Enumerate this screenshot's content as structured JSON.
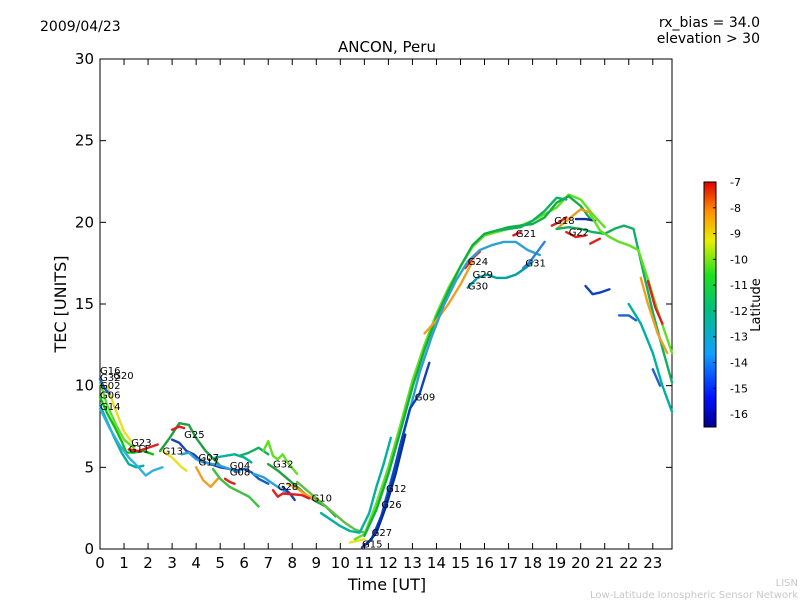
{
  "header": {
    "date": "2009/04/23",
    "bias_line1": "rx_bias = 34.0",
    "bias_line2": "elevation > 30"
  },
  "watermark": {
    "line1": "LISN",
    "line2": "Low-Latitude Ionospheric Sensor Network"
  },
  "chart_data": {
    "type": "line",
    "title": "ANCON, Peru",
    "xlabel": "Time [UT]",
    "ylabel": "TEC [UNITS]",
    "xlim": [
      0,
      23.8
    ],
    "ylim": [
      0,
      30
    ],
    "xticks": [
      0,
      1,
      2,
      3,
      4,
      5,
      6,
      7,
      8,
      9,
      10,
      11,
      12,
      13,
      14,
      15,
      16,
      17,
      18,
      19,
      20,
      21,
      22,
      23
    ],
    "yticks": [
      0,
      5,
      10,
      15,
      20,
      25,
      30
    ],
    "grid": false,
    "colorbar": {
      "label": "Latitude",
      "min": -16.5,
      "max": -7,
      "ticks": [
        -7,
        -8,
        -9,
        -10,
        -11,
        -12,
        -13,
        -14,
        -15,
        -16
      ]
    },
    "satellite_labels": [
      {
        "text": "G16",
        "x": 0.0,
        "y": 10.7
      },
      {
        "text": "G32",
        "x": 0.0,
        "y": 10.3
      },
      {
        "text": "G20",
        "x": 0.55,
        "y": 10.4
      },
      {
        "text": "G02",
        "x": 0.0,
        "y": 9.8
      },
      {
        "text": "G06",
        "x": 0.0,
        "y": 9.2
      },
      {
        "text": "G14",
        "x": 0.0,
        "y": 8.5
      },
      {
        "text": "G23",
        "x": 1.3,
        "y": 6.3
      },
      {
        "text": "G11",
        "x": 1.2,
        "y": 5.9
      },
      {
        "text": "G13",
        "x": 2.6,
        "y": 5.8
      },
      {
        "text": "G25",
        "x": 3.5,
        "y": 6.8
      },
      {
        "text": "G07",
        "x": 4.1,
        "y": 5.4
      },
      {
        "text": "G17",
        "x": 4.1,
        "y": 5.1
      },
      {
        "text": "G04",
        "x": 5.4,
        "y": 4.9
      },
      {
        "text": "G08",
        "x": 5.4,
        "y": 4.5
      },
      {
        "text": "G32",
        "x": 7.2,
        "y": 5.0
      },
      {
        "text": "G28",
        "x": 7.4,
        "y": 3.6
      },
      {
        "text": "G10",
        "x": 8.8,
        "y": 2.9
      },
      {
        "text": "G12",
        "x": 11.9,
        "y": 3.5
      },
      {
        "text": "G26",
        "x": 11.7,
        "y": 2.5
      },
      {
        "text": "G27",
        "x": 11.3,
        "y": 0.8
      },
      {
        "text": "G15",
        "x": 10.9,
        "y": 0.1
      },
      {
        "text": "G09",
        "x": 13.1,
        "y": 9.1
      },
      {
        "text": "G24",
        "x": 15.3,
        "y": 17.4
      },
      {
        "text": "G29",
        "x": 15.5,
        "y": 16.6
      },
      {
        "text": "G30",
        "x": 15.3,
        "y": 15.9
      },
      {
        "text": "G21",
        "x": 17.3,
        "y": 19.1
      },
      {
        "text": "G31",
        "x": 17.7,
        "y": 17.3
      },
      {
        "text": "G18",
        "x": 18.9,
        "y": 19.9
      },
      {
        "text": "G22",
        "x": 19.5,
        "y": 19.2
      }
    ],
    "series": [
      {
        "color": "#10c010",
        "x": [
          0,
          0.3,
          0.6,
          0.9,
          1.1,
          1.4,
          1.8,
          2.2
        ],
        "y": [
          9.3,
          8.3,
          7.5,
          6.6,
          5.9,
          5.9,
          6.0,
          5.8
        ]
      },
      {
        "color": "#00b0a0",
        "x": [
          0,
          0.3,
          0.6,
          0.9,
          1.2,
          1.5,
          1.8
        ],
        "y": [
          8.8,
          7.8,
          6.8,
          5.9,
          5.2,
          5.0,
          5.1
        ]
      },
      {
        "color": "#30b0e0",
        "x": [
          0,
          0.4,
          0.8,
          1.2,
          1.6,
          1.9,
          2.2,
          2.6
        ],
        "y": [
          8.6,
          7.4,
          6.4,
          5.6,
          5.0,
          4.5,
          4.8,
          5.0
        ]
      },
      {
        "color": "#60e020",
        "x": [
          0,
          0.3,
          0.7,
          1.0,
          1.4
        ],
        "y": [
          10.2,
          8.8,
          7.5,
          6.7,
          6.2
        ]
      },
      {
        "color": "#e8e020",
        "x": [
          0.3,
          0.6,
          1.0,
          1.3
        ],
        "y": [
          10.0,
          8.7,
          7.2,
          6.6
        ]
      },
      {
        "color": "#2060d0",
        "x": [
          0,
          0.2,
          0.4
        ],
        "y": [
          10.4,
          9.8,
          9.5
        ]
      },
      {
        "color": "#e02020",
        "x": [
          1.2,
          1.6,
          2.0,
          2.4
        ],
        "y": [
          6.1,
          6.0,
          6.2,
          6.4
        ]
      },
      {
        "color": "#20a040",
        "x": [
          2.5,
          2.9,
          3.3,
          3.7,
          4.0,
          4.4,
          4.8,
          5.0
        ],
        "y": [
          6.0,
          6.8,
          7.7,
          7.6,
          6.8,
          6.0,
          5.4,
          5.1
        ]
      },
      {
        "color": "#e8e020",
        "x": [
          2.6,
          3.0,
          3.4,
          3.6
        ],
        "y": [
          6.0,
          5.6,
          5.0,
          4.8
        ]
      },
      {
        "color": "#e02020",
        "x": [
          3.0,
          3.3,
          3.5
        ],
        "y": [
          7.3,
          7.5,
          7.4
        ]
      },
      {
        "color": "#2040c0",
        "x": [
          3.0,
          3.3,
          3.6,
          3.9,
          4.2,
          4.6,
          5.0,
          5.4,
          5.6
        ],
        "y": [
          6.7,
          6.5,
          6.0,
          5.8,
          5.4,
          5.2,
          5.0,
          4.9,
          4.8
        ]
      },
      {
        "color": "#30a0d0",
        "x": [
          3.4,
          3.7,
          4.0,
          4.3,
          4.7,
          5.0,
          5.4,
          5.8
        ],
        "y": [
          5.8,
          5.9,
          5.5,
          5.3,
          5.2,
          5.1,
          4.9,
          4.7
        ]
      },
      {
        "color": "#f0a020",
        "x": [
          4.0,
          4.3,
          4.6,
          4.9
        ],
        "y": [
          5.0,
          4.2,
          3.8,
          4.3
        ]
      },
      {
        "color": "#e02020",
        "x": [
          5.2,
          5.4,
          5.6
        ],
        "y": [
          4.3,
          4.1,
          4.0
        ]
      },
      {
        "color": "#40c040",
        "x": [
          4.7,
          5.0,
          5.4,
          5.8,
          6.2,
          6.6
        ],
        "y": [
          4.9,
          4.3,
          3.8,
          3.5,
          3.2,
          2.6
        ]
      },
      {
        "color": "#00b0a0",
        "x": [
          4.8,
          5.2,
          5.6,
          6.0,
          6.3
        ],
        "y": [
          5.6,
          5.7,
          5.8,
          5.6,
          5.3
        ]
      },
      {
        "color": "#1060c0",
        "x": [
          5.6,
          6.0,
          6.3,
          6.6,
          7.0
        ],
        "y": [
          4.8,
          4.9,
          4.7,
          4.3,
          4.0
        ]
      },
      {
        "color": "#10b060",
        "x": [
          5.8,
          6.2,
          6.6,
          7.0
        ],
        "y": [
          5.7,
          5.9,
          6.2,
          5.8
        ]
      },
      {
        "color": "#60e020",
        "x": [
          6.8,
          7.0,
          7.2,
          7.4,
          7.6,
          7.8,
          8.2
        ],
        "y": [
          6.0,
          6.6,
          5.7,
          5.5,
          5.8,
          5.3,
          4.6
        ]
      },
      {
        "color": "#20a040",
        "x": [
          7.0,
          7.4,
          7.8,
          8.2,
          8.6,
          9.0,
          9.4,
          9.8
        ],
        "y": [
          5.2,
          4.8,
          4.3,
          3.8,
          3.3,
          2.9,
          2.6,
          2.0
        ]
      },
      {
        "color": "#30a0d0",
        "x": [
          6.4,
          6.8,
          7.2,
          7.6,
          8.0
        ],
        "y": [
          4.6,
          4.4,
          4.0,
          3.6,
          3.3
        ]
      },
      {
        "color": "#2040c0",
        "x": [
          7.6,
          7.9,
          8.1
        ],
        "y": [
          3.8,
          3.4,
          3.0
        ]
      },
      {
        "color": "#f0a020",
        "x": [
          7.8,
          8.2,
          8.6,
          9.0
        ],
        "y": [
          4.0,
          3.7,
          3.3,
          3.0
        ]
      },
      {
        "color": "#e02020",
        "x": [
          7.2,
          7.4,
          7.6,
          8.4,
          8.7
        ],
        "y": [
          3.6,
          3.2,
          3.4,
          3.3,
          3.1
        ]
      },
      {
        "color": "#60c040",
        "x": [
          8.2,
          8.6,
          9.0,
          9.4,
          9.8,
          10.2,
          10.6,
          11.0
        ],
        "y": [
          4.1,
          3.6,
          3.1,
          2.6,
          2.1,
          1.6,
          1.2,
          1.0
        ]
      },
      {
        "color": "#00b0a0",
        "x": [
          9.2,
          9.6,
          10.0,
          10.4,
          10.8,
          11.2,
          11.5,
          11.8,
          12.1
        ],
        "y": [
          2.2,
          1.8,
          1.4,
          1.1,
          1.0,
          2.2,
          3.8,
          5.2,
          6.8
        ]
      },
      {
        "color": "#e8e020",
        "x": [
          10.4,
          10.7,
          11.0
        ],
        "y": [
          0.4,
          0.5,
          0.6
        ]
      },
      {
        "color": "#60e020",
        "x": [
          10.6,
          11.0,
          11.5,
          12.0,
          12.5,
          13.0,
          13.5,
          14.0,
          14.5,
          15.0,
          15.5,
          16.0,
          16.5,
          17.0,
          17.5,
          18.0,
          18.5,
          19.0,
          19.5,
          20.0,
          20.5,
          21.0
        ],
        "y": [
          0.6,
          0.9,
          2.8,
          5.0,
          7.6,
          10.3,
          12.5,
          14.4,
          16.0,
          17.3,
          18.5,
          19.2,
          19.4,
          19.6,
          19.8,
          20.1,
          20.5,
          20.9,
          21.7,
          21.4,
          20.5,
          19.7
        ]
      },
      {
        "color": "#10b040",
        "x": [
          11.0,
          11.5,
          12.0,
          12.5,
          13.0,
          13.5,
          14.0,
          14.5,
          15.0,
          15.5,
          16.0,
          16.5,
          17.0,
          17.5,
          18.0,
          18.5,
          19.0,
          19.5,
          20.0,
          20.4
        ],
        "y": [
          0.8,
          2.4,
          4.6,
          7.2,
          9.9,
          12.2,
          14.2,
          15.8,
          17.3,
          18.6,
          19.3,
          19.5,
          19.7,
          19.8,
          19.9,
          20.3,
          21.2,
          21.6,
          21.0,
          20.2
        ]
      },
      {
        "color": "#f0a020",
        "x": [
          13.5,
          14.0,
          14.5,
          15.0,
          15.5
        ],
        "y": [
          13.2,
          14.0,
          15.0,
          16.2,
          17.6
        ]
      },
      {
        "color": "#e02020",
        "x": [
          15.2,
          15.5,
          15.8
        ],
        "y": [
          17.2,
          17.8,
          18.2
        ]
      },
      {
        "color": "#30a0d0",
        "x": [
          11.8,
          12.3,
          12.8,
          13.3,
          13.8,
          14.3,
          14.8,
          15.3,
          15.8,
          16.3,
          16.8,
          17.3,
          17.8,
          18.3
        ],
        "y": [
          2.6,
          5.2,
          8.0,
          10.8,
          13.0,
          14.9,
          16.4,
          17.6,
          18.3,
          18.6,
          18.8,
          18.8,
          18.3,
          18.0
        ]
      },
      {
        "color": "#1040c0",
        "x": [
          10.9,
          11.3,
          11.7,
          12.1,
          12.5,
          12.9,
          13.3,
          13.7
        ],
        "y": [
          0.1,
          0.6,
          2.0,
          4.0,
          6.4,
          8.6,
          9.5,
          11.4
        ]
      },
      {
        "color": "#0030a0",
        "x": [
          11.1,
          11.5,
          11.9,
          12.3,
          12.7
        ],
        "y": [
          0.3,
          1.0,
          2.6,
          4.6,
          7.0
        ]
      },
      {
        "color": "#00a0a0",
        "x": [
          15.3,
          15.7,
          16.1,
          16.5,
          16.9,
          17.3,
          17.7,
          18.0
        ],
        "y": [
          16.0,
          16.6,
          16.8,
          16.6,
          16.6,
          16.8,
          17.2,
          17.6
        ]
      },
      {
        "color": "#3080e0",
        "x": [
          17.6,
          17.9,
          18.2,
          18.5
        ],
        "y": [
          17.2,
          17.6,
          18.2,
          18.8
        ]
      },
      {
        "color": "#10b060",
        "x": [
          16.5,
          17.0,
          17.5,
          18.0,
          18.5,
          19.0,
          19.4
        ],
        "y": [
          19.5,
          19.6,
          19.7,
          20.1,
          20.7,
          21.5,
          21.4
        ]
      },
      {
        "color": "#e02020",
        "x": [
          18.8,
          19.1,
          19.4
        ],
        "y": [
          19.8,
          20.0,
          20.3
        ]
      },
      {
        "color": "#e02020",
        "x": [
          17.2,
          17.5
        ],
        "y": [
          19.2,
          19.4
        ]
      },
      {
        "color": "#e0a020",
        "x": [
          19.0,
          19.5,
          20.0,
          20.4
        ],
        "y": [
          19.6,
          20.2,
          20.8,
          20.6
        ]
      },
      {
        "color": "#e02020",
        "x": [
          19.4,
          19.8,
          20.2
        ],
        "y": [
          19.4,
          19.1,
          19.2
        ]
      },
      {
        "color": "#e02020",
        "x": [
          20.4,
          20.8
        ],
        "y": [
          18.7,
          19.0
        ]
      },
      {
        "color": "#1030a0",
        "x": [
          19.8,
          20.2,
          20.6
        ],
        "y": [
          20.2,
          20.2,
          20.1
        ]
      },
      {
        "color": "#10b060",
        "x": [
          19.0,
          19.5,
          20.0,
          20.5,
          21.0,
          21.4,
          21.8,
          22.2,
          22.6,
          23.0,
          23.4,
          23.8
        ],
        "y": [
          19.6,
          19.7,
          19.6,
          19.4,
          19.3,
          19.6,
          19.8,
          19.6,
          17.0,
          14.5,
          12.3,
          10.2
        ]
      },
      {
        "color": "#60e020",
        "x": [
          20.4,
          20.8,
          21.2,
          21.6,
          22.0,
          22.4,
          22.8,
          23.2,
          23.8
        ],
        "y": [
          20.5,
          19.5,
          19.1,
          18.8,
          18.6,
          18.3,
          16.5,
          14.6,
          12.0
        ]
      },
      {
        "color": "#1040c0",
        "x": [
          20.2,
          20.5,
          20.8,
          21.2
        ],
        "y": [
          16.1,
          15.6,
          15.7,
          15.9
        ]
      },
      {
        "color": "#2060d0",
        "x": [
          21.6,
          22.0,
          22.3
        ],
        "y": [
          14.3,
          14.3,
          14.0
        ]
      },
      {
        "color": "#f0a020",
        "x": [
          22.5,
          22.8,
          23.2,
          23.6
        ],
        "y": [
          16.6,
          15.0,
          13.2,
          12.0
        ]
      },
      {
        "color": "#e02020",
        "x": [
          22.8,
          23.1,
          23.4
        ],
        "y": [
          16.4,
          14.8,
          13.8
        ]
      },
      {
        "color": "#00b0a0",
        "x": [
          22.0,
          22.5,
          23.0,
          23.4,
          23.8
        ],
        "y": [
          15.0,
          13.8,
          12.0,
          10.0,
          8.4
        ]
      },
      {
        "color": "#2060d0",
        "x": [
          23.0,
          23.3
        ],
        "y": [
          11.0,
          10.0
        ]
      }
    ]
  }
}
